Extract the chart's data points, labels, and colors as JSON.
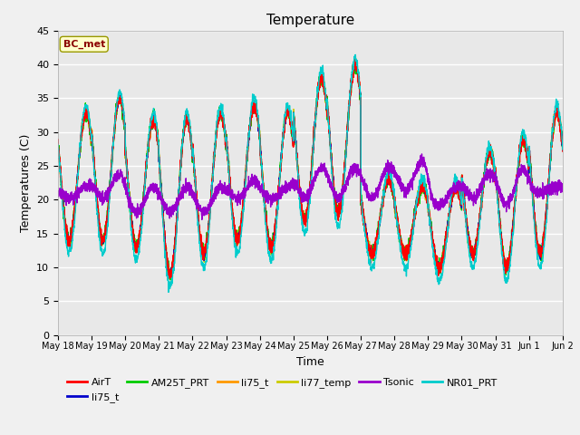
{
  "title": "Temperature",
  "xlabel": "Time",
  "ylabel": "Temperatures (C)",
  "ylim": [
    0,
    45
  ],
  "yticks": [
    0,
    5,
    10,
    15,
    20,
    25,
    30,
    35,
    40,
    45
  ],
  "annotation": "BC_met",
  "legend_entries": [
    "AirT",
    "li75_t",
    "AM25T_PRT",
    "li75_t",
    "li77_temp",
    "Tsonic",
    "NR01_PRT"
  ],
  "legend_colors": [
    "#ff0000",
    "#0000cc",
    "#00cc00",
    "#ff9900",
    "#cccc00",
    "#9900cc",
    "#00cccc"
  ],
  "axes_facecolor": "#e8e8e8",
  "grid_color": "#ffffff",
  "n_days": 15,
  "day_maxes": [
    33,
    35,
    32,
    32,
    33,
    34,
    33,
    38,
    40,
    23,
    22,
    22,
    27,
    29,
    33
  ],
  "day_mins": [
    14,
    14,
    13,
    9,
    12,
    14,
    13,
    17,
    18,
    12,
    12,
    10,
    12,
    10,
    12
  ],
  "tsonic_day_maxes": [
    22,
    24,
    22,
    22,
    22,
    23,
    22,
    25,
    25,
    25,
    26,
    22,
    24,
    25,
    22
  ],
  "tsonic_day_mins": [
    20,
    20,
    18,
    18,
    18,
    20,
    20,
    20,
    20,
    20,
    21,
    19,
    20,
    19,
    21
  ]
}
